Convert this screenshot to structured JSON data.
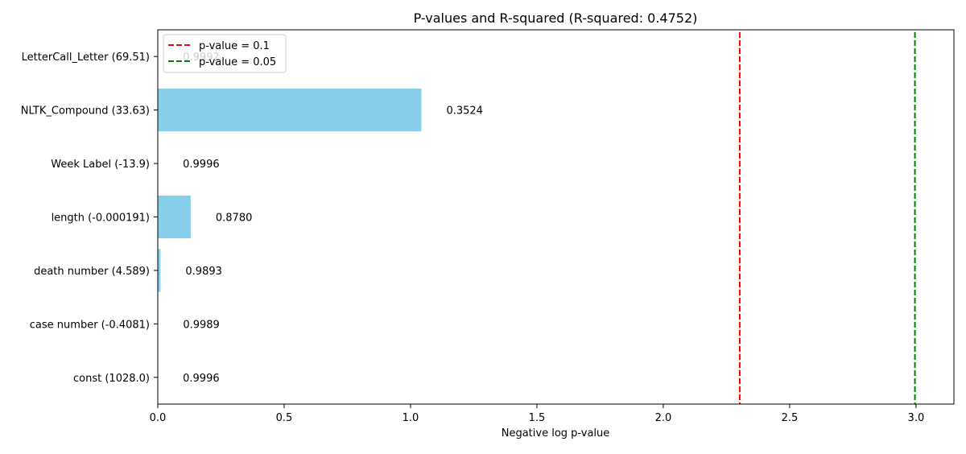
{
  "chart_data": {
    "type": "bar",
    "orientation": "horizontal",
    "title": "P-values and R-squared (R-squared: 0.4752)",
    "xlabel": "Negative log p-value",
    "ylabel": "",
    "xlim": [
      0,
      3.15
    ],
    "x_ticks": [
      0.0,
      0.5,
      1.0,
      1.5,
      2.0,
      2.5,
      3.0
    ],
    "x_tick_labels": [
      "0.0",
      "0.5",
      "1.0",
      "1.5",
      "2.0",
      "2.5",
      "3.0"
    ],
    "bar_color": "#87ceeb",
    "categories": [
      "const (1028.0)",
      "case number (-0.4081)",
      "death number (4.589)",
      "length (-0.000191)",
      "Week Label (-13.9)",
      "NLTK_Compound (33.63)",
      "LetterCall_Letter (69.51)"
    ],
    "values": [
      0.0004,
      0.0011,
      0.0108,
      0.1302,
      0.0004,
      1.043,
      0.0008
    ],
    "value_labels": [
      "0.9996",
      "0.9989",
      "0.9893",
      "0.8780",
      "0.9996",
      "0.3524",
      "0.9992"
    ],
    "reference_lines": [
      {
        "label": "p-value = 0.1",
        "x": 2.3026,
        "color": "#ff0000",
        "style": "dashed"
      },
      {
        "label": "p-value = 0.05",
        "x": 2.9957,
        "color": "#008000",
        "style": "dashed"
      }
    ],
    "legend_position": "top-left",
    "grid": false
  }
}
